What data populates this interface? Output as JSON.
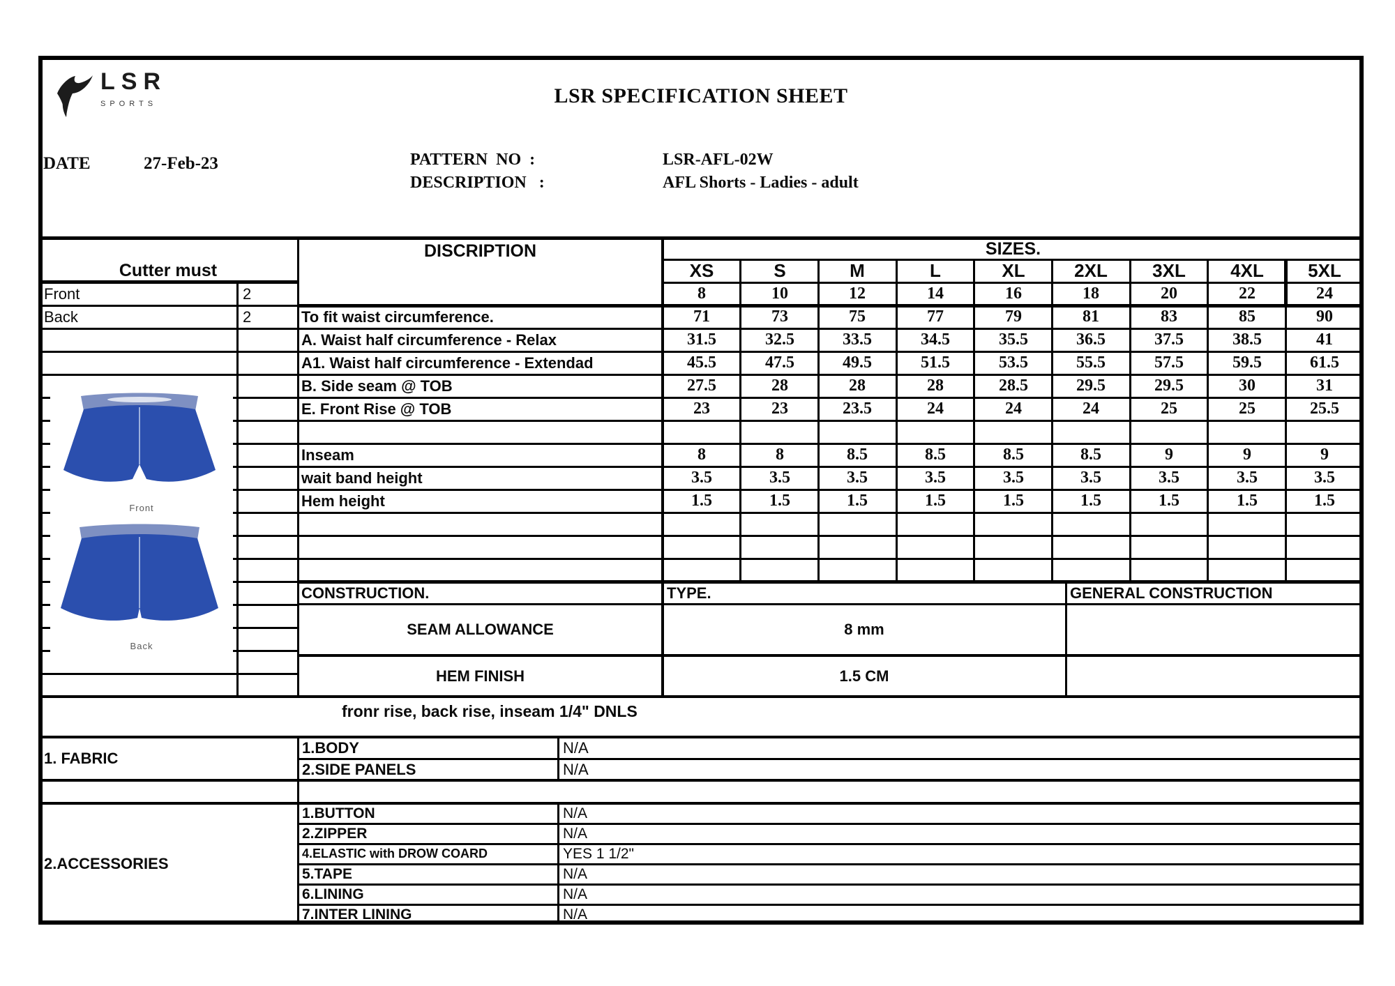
{
  "header": {
    "logo_brand": "LSR",
    "logo_sub": "SPORTS",
    "title": "LSR SPECIFICATION SHEET",
    "date_label": "DATE",
    "date_value": "27-Feb-23",
    "pattern_label": "PATTERN  NO  :",
    "pattern_value": "LSR-AFL-02W",
    "description_label": "DESCRIPTION   :",
    "description_value": "AFL Shorts - Ladies - adult"
  },
  "cutter": {
    "title": "Cutter must",
    "rows": [
      {
        "label": "Front",
        "qty": "2"
      },
      {
        "label": "Back",
        "qty": "2"
      }
    ]
  },
  "diagram": {
    "front_label": "Front",
    "back_label": "Back",
    "shorts_color": "#2b4fae",
    "waistband_color": "#7e90c2",
    "seam_color": "#9db1dd"
  },
  "spec_table": {
    "description_header": "DISCRIPTION",
    "sizes_header": "SIZES.",
    "size_labels": [
      "XS",
      "S",
      "M",
      "L",
      "XL",
      "2XL",
      "3XL",
      "4XL",
      "5XL"
    ],
    "size_numbers": [
      "8",
      "10",
      "12",
      "14",
      "16",
      "18",
      "20",
      "22",
      "24"
    ],
    "rows": [
      {
        "label": "To fit waist circumference.",
        "values": [
          "71",
          "73",
          "75",
          "77",
          "79",
          "81",
          "83",
          "85",
          "90"
        ]
      },
      {
        "label": "A. Waist half circumference - Relax",
        "values": [
          "31.5",
          "32.5",
          "33.5",
          "34.5",
          "35.5",
          "36.5",
          "37.5",
          "38.5",
          "41"
        ]
      },
      {
        "label": "A1. Waist half circumference - Extendad",
        "values": [
          "45.5",
          "47.5",
          "49.5",
          "51.5",
          "53.5",
          "55.5",
          "57.5",
          "59.5",
          "61.5"
        ]
      },
      {
        "label": "B. Side seam @ TOB",
        "values": [
          "27.5",
          "28",
          "28",
          "28",
          "28.5",
          "29.5",
          "29.5",
          "30",
          "31"
        ]
      },
      {
        "label": "E. Front Rise @ TOB",
        "values": [
          "23",
          "23",
          "23.5",
          "24",
          "24",
          "24",
          "25",
          "25",
          "25.5"
        ]
      },
      {
        "label": "",
        "values": [
          "",
          "",
          "",
          "",
          "",
          "",
          "",
          "",
          ""
        ]
      },
      {
        "label": "Inseam",
        "values": [
          "8",
          "8",
          "8.5",
          "8.5",
          "8.5",
          "8.5",
          "9",
          "9",
          "9"
        ]
      },
      {
        "label": "wait band height",
        "values": [
          "3.5",
          "3.5",
          "3.5",
          "3.5",
          "3.5",
          "3.5",
          "3.5",
          "3.5",
          "3.5"
        ]
      },
      {
        "label": "Hem height",
        "values": [
          "1.5",
          "1.5",
          "1.5",
          "1.5",
          "1.5",
          "1.5",
          "1.5",
          "1.5",
          "1.5"
        ]
      },
      {
        "label": "",
        "values": [
          "",
          "",
          "",
          "",
          "",
          "",
          "",
          "",
          ""
        ]
      },
      {
        "label": "",
        "values": [
          "",
          "",
          "",
          "",
          "",
          "",
          "",
          "",
          ""
        ]
      },
      {
        "label": "",
        "values": [
          "",
          "",
          "",
          "",
          "",
          "",
          "",
          "",
          ""
        ]
      }
    ]
  },
  "construction": {
    "header": "CONSTRUCTION.",
    "type_header": "TYPE.",
    "general_header": "GENERAL CONSTRUCTION",
    "rows": [
      {
        "label": "SEAM ALLOWANCE",
        "type": "8 mm",
        "general": ""
      },
      {
        "label": "HEM FINISH",
        "type": "1.5 CM",
        "general": ""
      }
    ],
    "note": "fronr rise, back rise, inseam 1/4\" DNLS"
  },
  "fabric": {
    "label": "1. FABRIC",
    "rows": [
      {
        "item": "1.BODY",
        "value": "N/A"
      },
      {
        "item": "2.SIDE PANELS",
        "value": "N/A"
      }
    ]
  },
  "accessories": {
    "label": "2.ACCESSORIES",
    "rows": [
      {
        "item": "1.BUTTON",
        "value": "N/A"
      },
      {
        "item": "2.ZIPPER",
        "value": "N/A"
      },
      {
        "item": "4.ELASTIC with DROW COARD",
        "value": "YES 1 1/2\""
      },
      {
        "item": "5.TAPE",
        "value": "N/A"
      },
      {
        "item": "6.LINING",
        "value": "N/A"
      },
      {
        "item": "7.INTER LINING",
        "value": "N/A"
      }
    ]
  }
}
